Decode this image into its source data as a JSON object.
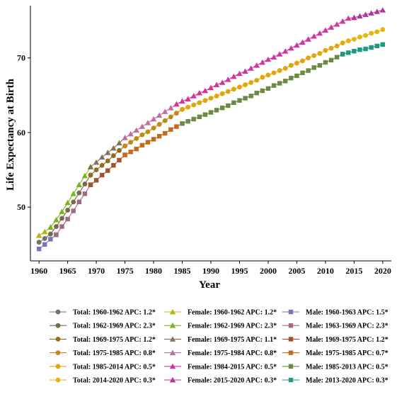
{
  "chart_data": {
    "type": "line",
    "title": "",
    "xlabel": "Year",
    "ylabel": "Life Expectancy at Birth",
    "xlim": [
      1958.5,
      2021.5
    ],
    "ylim": [
      42.8,
      77.0
    ],
    "x_ticks": [
      1960,
      1965,
      1970,
      1975,
      1980,
      1985,
      1990,
      1995,
      2000,
      2005,
      2010,
      2015,
      2020
    ],
    "y_ticks": [
      50,
      60,
      70
    ],
    "grid": false,
    "legend_position": "bottom",
    "series": [
      {
        "name": "Total: 1960-1962 APC: 1.2*",
        "color": "#707070",
        "marker": "circle",
        "x": [
          1960,
          1961,
          1962
        ],
        "y": [
          45.3,
          45.8,
          46.4
        ]
      },
      {
        "name": "Total: 1962-1969 APC: 2.3*",
        "color": "#7a6a4c",
        "marker": "circle",
        "x": [
          1962,
          1963,
          1964,
          1965,
          1966,
          1967,
          1968,
          1969
        ],
        "y": [
          46.4,
          47.4,
          48.5,
          49.6,
          50.7,
          51.9,
          53.1,
          54.3
        ]
      },
      {
        "name": "Total: 1969-1975 APC: 1.2*",
        "color": "#8f6e1c",
        "marker": "circle",
        "x": [
          1969,
          1970,
          1971,
          1972,
          1973,
          1974,
          1975
        ],
        "y": [
          54.3,
          55.0,
          55.6,
          56.2,
          56.9,
          57.6,
          58.2
        ]
      },
      {
        "name": "Total: 1975-1985 APC: 0.8*",
        "color": "#c08a12",
        "marker": "circle",
        "x": [
          1975,
          1976,
          1977,
          1978,
          1979,
          1980,
          1981,
          1982,
          1983,
          1984,
          1985
        ],
        "y": [
          58.2,
          58.7,
          59.2,
          59.7,
          60.1,
          60.6,
          61.1,
          61.6,
          62.1,
          62.6,
          63.1
        ]
      },
      {
        "name": "Total: 1985-2014 APC: 0.5*",
        "color": "#e0a60c",
        "marker": "circle",
        "x": [
          1985,
          1986,
          1987,
          1988,
          1989,
          1990,
          1991,
          1992,
          1993,
          1994,
          1995,
          1996,
          1997,
          1998,
          1999,
          2000,
          2001,
          2002,
          2003,
          2004,
          2005,
          2006,
          2007,
          2008,
          2009,
          2010,
          2011,
          2012,
          2013,
          2014
        ],
        "y": [
          63.1,
          63.4,
          63.7,
          64.0,
          64.3,
          64.6,
          64.9,
          65.2,
          65.5,
          65.8,
          66.1,
          66.4,
          66.7,
          67.0,
          67.4,
          67.7,
          68.0,
          68.3,
          68.6,
          69.0,
          69.3,
          69.6,
          70.0,
          70.3,
          70.6,
          71.0,
          71.3,
          71.6,
          72.0,
          72.3
        ]
      },
      {
        "name": "Total: 2014-2020 APC: 0.3*",
        "color": "#e5b516",
        "marker": "circle",
        "x": [
          2014,
          2015,
          2016,
          2017,
          2018,
          2019,
          2020
        ],
        "y": [
          72.3,
          72.5,
          72.8,
          73.0,
          73.3,
          73.5,
          73.8
        ]
      },
      {
        "name": "Female: 1960-1962 APC: 1.2*",
        "color": "#b5b510",
        "marker": "triangle",
        "x": [
          1960,
          1961,
          1962
        ],
        "y": [
          46.2,
          46.7,
          47.3
        ]
      },
      {
        "name": "Female: 1962-1969 APC: 2.3*",
        "color": "#79b41c",
        "marker": "triangle",
        "x": [
          1962,
          1963,
          1964,
          1965,
          1966,
          1967,
          1968,
          1969
        ],
        "y": [
          47.3,
          48.3,
          49.4,
          50.6,
          51.8,
          53.0,
          54.2,
          55.4
        ]
      },
      {
        "name": "Female: 1969-1975 APC: 1.1*",
        "color": "#8a7050",
        "marker": "triangle",
        "x": [
          1969,
          1970,
          1971,
          1972,
          1973,
          1974,
          1975
        ],
        "y": [
          55.4,
          56.0,
          56.7,
          57.3,
          57.9,
          58.6,
          59.3
        ]
      },
      {
        "name": "Female: 1975-1984 APC: 0.8*",
        "color": "#c06fa1",
        "marker": "triangle",
        "x": [
          1975,
          1976,
          1977,
          1978,
          1979,
          1980,
          1981,
          1982,
          1983,
          1984
        ],
        "y": [
          59.3,
          59.8,
          60.3,
          60.8,
          61.3,
          61.8,
          62.3,
          62.8,
          63.3,
          63.8
        ]
      },
      {
        "name": "Female: 1984-2015 APC: 0.5*",
        "color": "#d4359b",
        "marker": "triangle",
        "x": [
          1984,
          1985,
          1986,
          1987,
          1988,
          1989,
          1990,
          1991,
          1992,
          1993,
          1994,
          1995,
          1996,
          1997,
          1998,
          1999,
          2000,
          2001,
          2002,
          2003,
          2004,
          2005,
          2006,
          2007,
          2008,
          2009,
          2010,
          2011,
          2012,
          2013,
          2014,
          2015
        ],
        "y": [
          63.8,
          64.2,
          64.5,
          64.9,
          65.3,
          65.6,
          66.0,
          66.4,
          66.7,
          67.1,
          67.5,
          67.9,
          68.2,
          68.6,
          69.0,
          69.4,
          69.8,
          70.1,
          70.5,
          70.9,
          71.3,
          71.7,
          72.1,
          72.5,
          72.9,
          73.3,
          73.7,
          74.1,
          74.5,
          74.9,
          75.3,
          75.4
        ]
      },
      {
        "name": "Female: 2015-2020 APC: 0.3*",
        "color": "#b8339a",
        "marker": "triangle",
        "x": [
          2015,
          2016,
          2017,
          2018,
          2019,
          2020
        ],
        "y": [
          75.4,
          75.6,
          75.8,
          76.0,
          76.2,
          76.4
        ]
      },
      {
        "name": "Male: 1960-1963 APC: 1.5*",
        "color": "#7b75b5",
        "marker": "square",
        "x": [
          1960,
          1961,
          1962,
          1963
        ],
        "y": [
          44.4,
          45.0,
          45.7,
          46.3
        ]
      },
      {
        "name": "Male: 1963-1969 APC: 2.3*",
        "color": "#a06a82",
        "marker": "square",
        "x": [
          1963,
          1964,
          1965,
          1966,
          1967,
          1968,
          1969
        ],
        "y": [
          46.3,
          47.4,
          48.4,
          49.5,
          50.7,
          51.8,
          53.0
        ]
      },
      {
        "name": "Male: 1969-1975 APC: 1.2*",
        "color": "#a5512b",
        "marker": "square",
        "x": [
          1969,
          1970,
          1971,
          1972,
          1973,
          1974,
          1975
        ],
        "y": [
          53.0,
          53.6,
          54.3,
          54.9,
          55.6,
          56.3,
          57.0
        ]
      },
      {
        "name": "Male: 1975-1985 APC: 0.7*",
        "color": "#c8691a",
        "marker": "square",
        "x": [
          1975,
          1976,
          1977,
          1978,
          1979,
          1980,
          1981,
          1982,
          1983,
          1984,
          1985
        ],
        "y": [
          57.0,
          57.4,
          57.8,
          58.3,
          58.7,
          59.1,
          59.5,
          59.9,
          60.4,
          60.8,
          61.2
        ]
      },
      {
        "name": "Male: 1985-2013 APC: 0.5*",
        "color": "#6b8a45",
        "marker": "square",
        "x": [
          1985,
          1986,
          1987,
          1988,
          1989,
          1990,
          1991,
          1992,
          1993,
          1994,
          1995,
          1996,
          1997,
          1998,
          1999,
          2000,
          2001,
          2002,
          2003,
          2004,
          2005,
          2006,
          2007,
          2008,
          2009,
          2010,
          2011,
          2012,
          2013
        ],
        "y": [
          61.2,
          61.5,
          61.8,
          62.1,
          62.4,
          62.7,
          63.0,
          63.3,
          63.6,
          64.0,
          64.3,
          64.6,
          64.9,
          65.3,
          65.6,
          65.9,
          66.3,
          66.6,
          66.9,
          67.3,
          67.6,
          68.0,
          68.3,
          68.7,
          69.0,
          69.4,
          69.7,
          70.1,
          70.5
        ]
      },
      {
        "name": "Male: 2013-2020 APC: 0.3*",
        "color": "#1e9a7e",
        "marker": "square",
        "x": [
          2013,
          2014,
          2015,
          2016,
          2017,
          2018,
          2019,
          2020
        ],
        "y": [
          70.5,
          70.7,
          70.9,
          71.1,
          71.2,
          71.4,
          71.6,
          71.8
        ]
      }
    ]
  }
}
